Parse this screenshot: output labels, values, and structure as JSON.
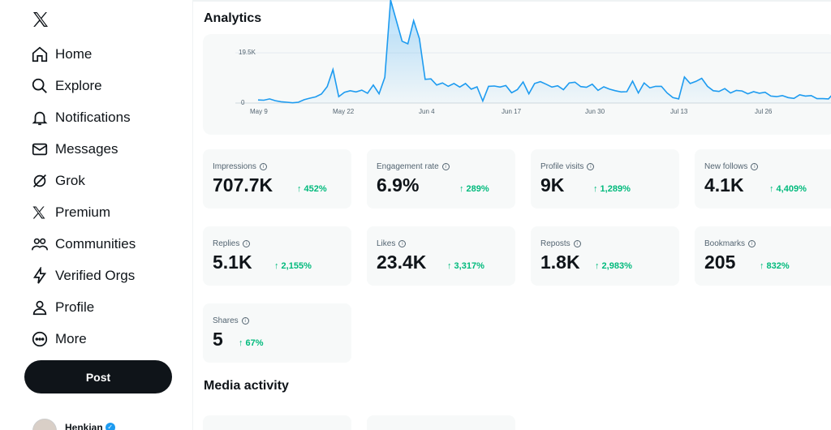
{
  "sidebar": {
    "items": [
      {
        "label": "Home",
        "icon": "home-icon"
      },
      {
        "label": "Explore",
        "icon": "search-icon"
      },
      {
        "label": "Notifications",
        "icon": "bell-icon"
      },
      {
        "label": "Messages",
        "icon": "envelope-icon"
      },
      {
        "label": "Grok",
        "icon": "grok-icon"
      },
      {
        "label": "Premium",
        "icon": "x-logo-icon"
      },
      {
        "label": "Communities",
        "icon": "people-icon"
      },
      {
        "label": "Verified Orgs",
        "icon": "lightning-icon"
      },
      {
        "label": "Profile",
        "icon": "person-icon"
      },
      {
        "label": "More",
        "icon": "more-circle-icon"
      }
    ],
    "post_label": "Post",
    "account_name": "Henkian"
  },
  "analytics": {
    "title": "Analytics",
    "media_title": "Media activity"
  },
  "chart_data": {
    "type": "area",
    "title": "Analytics",
    "x_tick_labels": [
      "May 9",
      "May 22",
      "Jun 4",
      "Jun 17",
      "Jun 30",
      "Jul 13",
      "Jul 26"
    ],
    "y_tick_labels": [
      "19.5K",
      "0"
    ],
    "ylim": [
      0,
      40000
    ],
    "series": [
      {
        "name": "Impressions",
        "values": [
          1200,
          1100,
          1600,
          900,
          500,
          300,
          100,
          300,
          1300,
          1900,
          2400,
          3500,
          6400,
          13000,
          2500,
          4200,
          4800,
          4300,
          5000,
          3800,
          7000,
          3600,
          10000,
          40000,
          32000,
          24000,
          23000,
          32000,
          25000,
          9200,
          9400,
          7000,
          7800,
          6500,
          7600,
          6200,
          7600,
          5400,
          6300,
          800,
          6500,
          6600,
          6200,
          6800,
          4000,
          5200,
          8200,
          3600,
          7600,
          8300,
          7300,
          6200,
          6700,
          5200,
          7800,
          8100,
          6400,
          6100,
          7300,
          4900,
          6300,
          5400,
          4800,
          4300,
          4400,
          8500,
          3900,
          7800,
          5900,
          6500,
          6500,
          3900,
          2100,
          1600,
          10100,
          7600,
          8400,
          9600,
          6500,
          4800,
          4500,
          5600,
          3900,
          4900,
          4700,
          3600,
          4400,
          3800,
          4200,
          2700,
          2500,
          2900,
          2100,
          1800,
          3200,
          2700,
          2900,
          1700,
          1700,
          1600,
          4100
        ]
      }
    ]
  },
  "metrics": [
    {
      "title": "Impressions",
      "value": "707.7K",
      "change": "↑ 452%"
    },
    {
      "title": "Engagement rate",
      "value": "6.9%",
      "change": "↑ 289%"
    },
    {
      "title": "Profile visits",
      "value": "9K",
      "change": "↑ 1,289%"
    },
    {
      "title": "New follows",
      "value": "4.1K",
      "change": "↑ 4,409%"
    },
    {
      "title": "Replies",
      "value": "5.1K",
      "change": "↑ 2,155%"
    },
    {
      "title": "Likes",
      "value": "23.4K",
      "change": "↑ 3,317%"
    },
    {
      "title": "Reposts",
      "value": "1.8K",
      "change": "↑ 2,983%"
    },
    {
      "title": "Bookmarks",
      "value": "205",
      "change": "↑ 832%"
    },
    {
      "title": "Shares",
      "value": "5",
      "change": "↑ 67%"
    }
  ],
  "colors": {
    "accent": "#1d9bf0",
    "positive": "#00ba7c",
    "card_bg": "#f7f9f9"
  }
}
